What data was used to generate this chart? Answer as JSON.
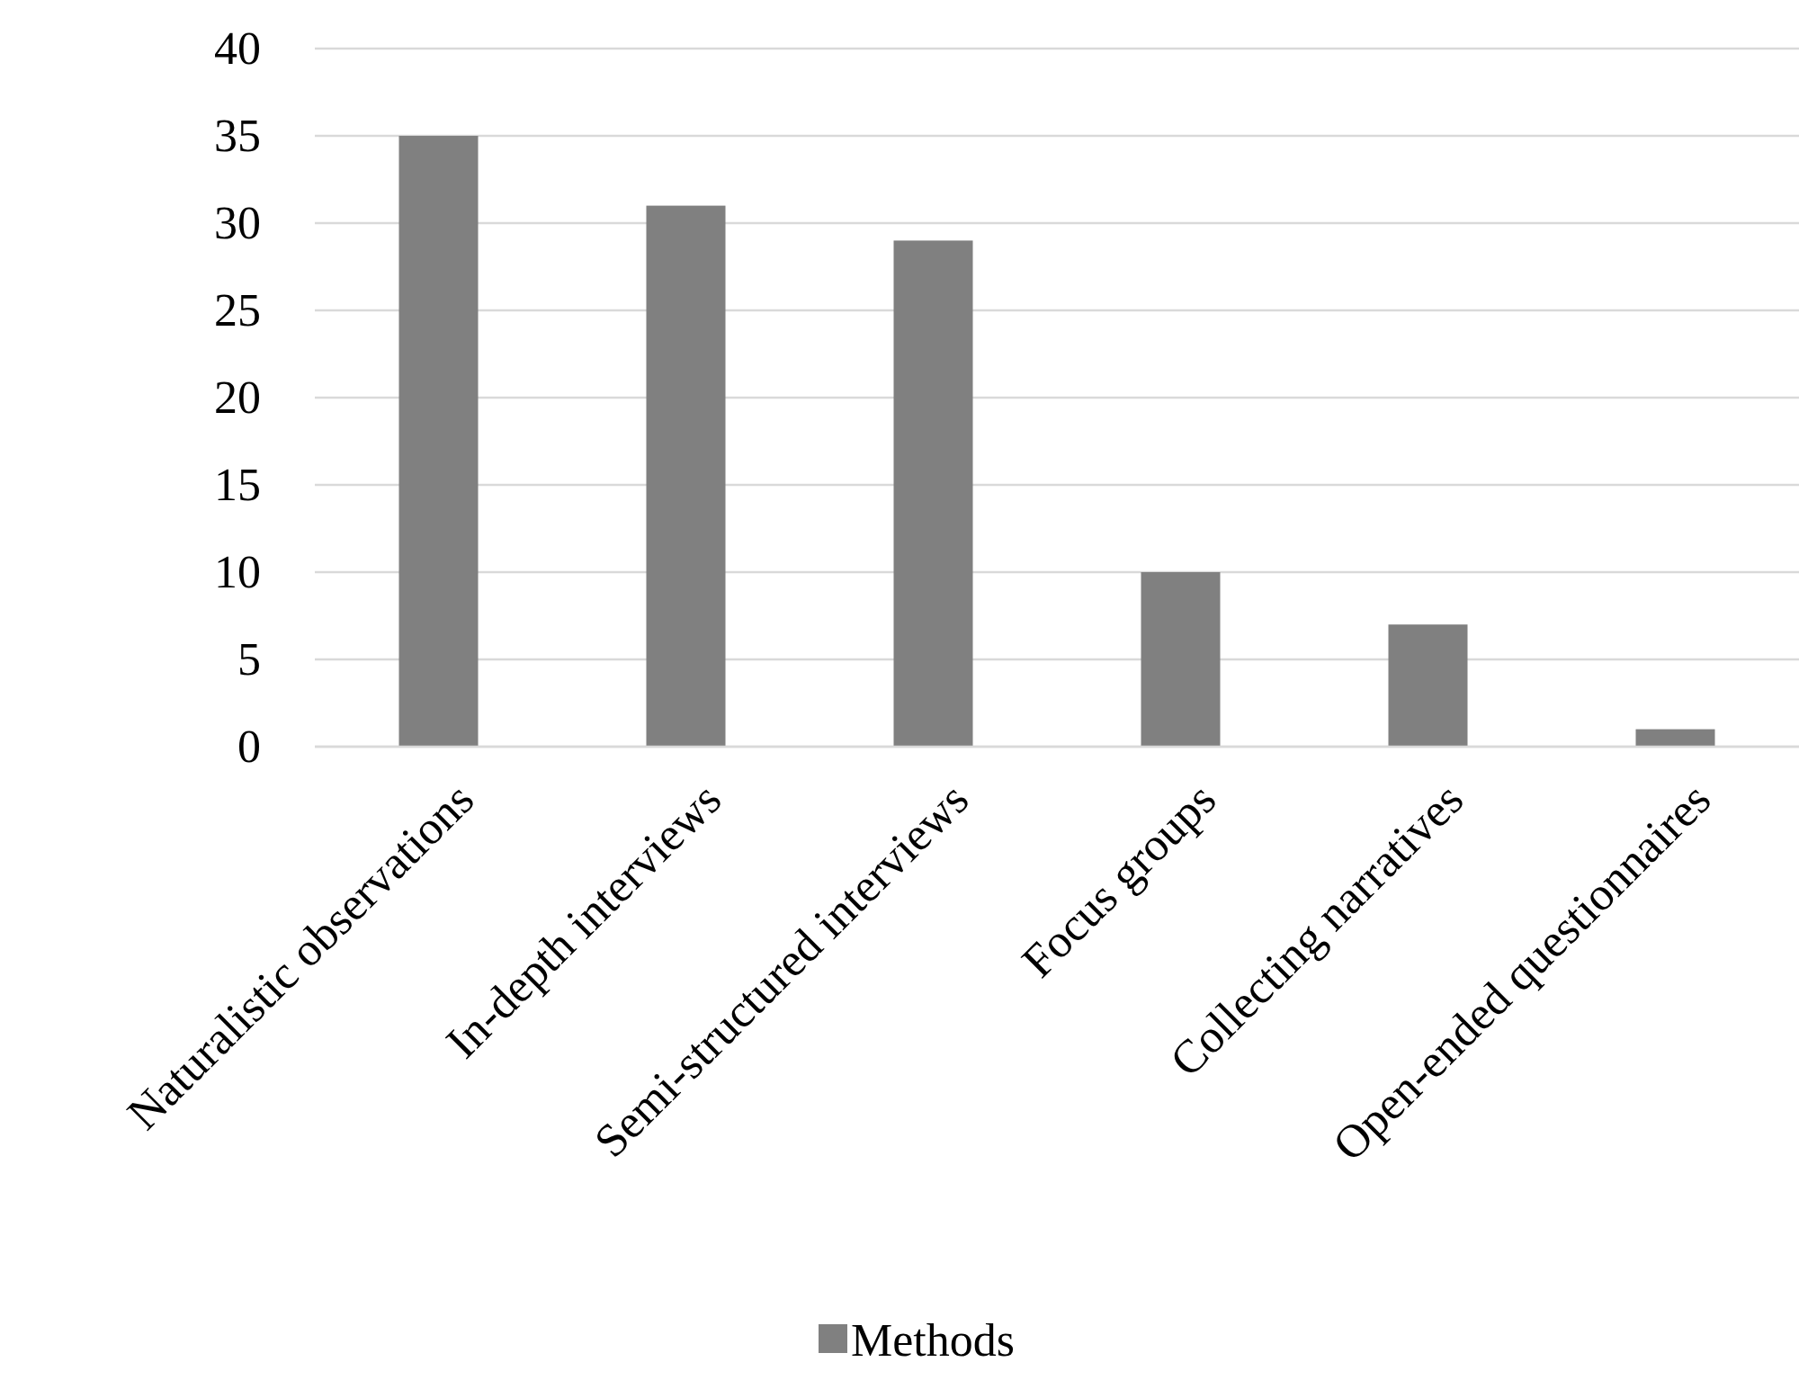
{
  "chart_data": {
    "type": "bar",
    "categories": [
      "Naturalistic observations",
      "In-depth interviews",
      "Semi-structured interviews",
      "Focus groups",
      "Collecting narratives",
      "Open-ended questionnaires"
    ],
    "series": [
      {
        "name": "Methods",
        "color": "#808080",
        "values": [
          35,
          31,
          29,
          10,
          7,
          1
        ]
      }
    ],
    "ylim": [
      0,
      40
    ],
    "yticks": [
      0,
      5,
      10,
      15,
      20,
      25,
      30,
      35,
      40
    ],
    "grid": "y",
    "legend": "bottom"
  }
}
